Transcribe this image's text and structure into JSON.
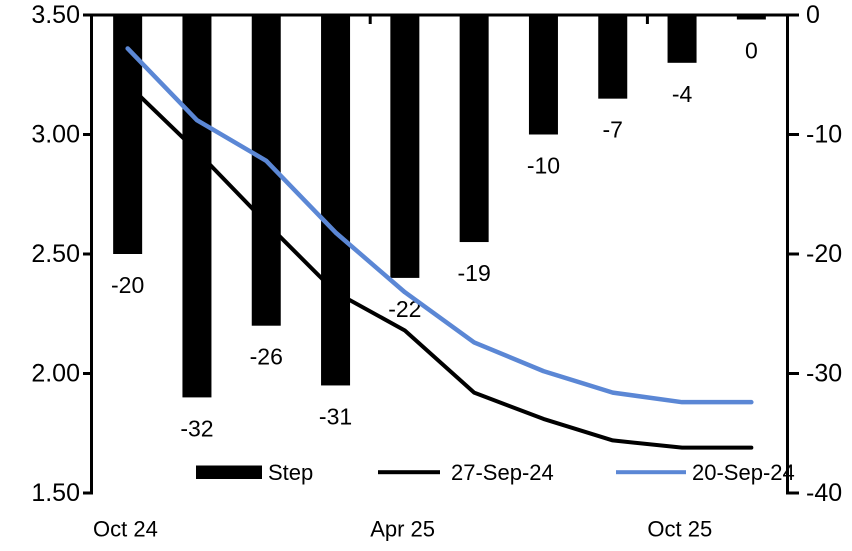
{
  "chart_data": {
    "type": "combo-bar-line",
    "title": "",
    "grid": false,
    "num_categories": 10,
    "bar_series": {
      "name": "Step",
      "axis": "right",
      "color": "#000000",
      "values": [
        -20,
        -32,
        -26,
        -31,
        -22,
        -19,
        -10,
        -7,
        -4,
        0
      ],
      "data_labels": [
        "-20",
        "-32",
        "-26",
        "-31",
        "-22",
        "-19",
        "-10",
        "-7",
        "-4",
        "0"
      ]
    },
    "line_series": [
      {
        "name": "27-Sep-24",
        "axis": "left",
        "color": "#000000",
        "values": [
          3.21,
          2.93,
          2.63,
          2.34,
          2.18,
          1.92,
          1.81,
          1.72,
          1.69,
          1.69
        ]
      },
      {
        "name": "20-Sep-24",
        "axis": "left",
        "color": "#5b87d5",
        "values": [
          3.36,
          3.06,
          2.89,
          2.59,
          2.34,
          2.13,
          2.01,
          1.92,
          1.88,
          1.88
        ]
      }
    ],
    "left_axis": {
      "min": 1.5,
      "max": 3.5,
      "tick_labels": [
        "3.50",
        "3.00",
        "2.50",
        "2.00",
        "1.50"
      ]
    },
    "right_axis": {
      "min": -40,
      "max": 0,
      "tick_labels": [
        "0",
        "-10",
        "-20",
        "-30",
        "-40"
      ]
    },
    "x_axis": {
      "labels": [
        "Oct 24",
        "Apr 25",
        "Oct 25"
      ],
      "label_boundary_index": [
        0,
        4,
        8
      ],
      "tick_boundary_index": [
        4,
        8
      ]
    },
    "legend": {
      "position": "bottom",
      "entries": [
        {
          "label": "Step",
          "swatch": "bar",
          "color": "#000000"
        },
        {
          "label": "27-Sep-24",
          "swatch": "line",
          "color": "#000000"
        },
        {
          "label": "20-Sep-24",
          "swatch": "line",
          "color": "#5b87d5"
        }
      ]
    }
  }
}
